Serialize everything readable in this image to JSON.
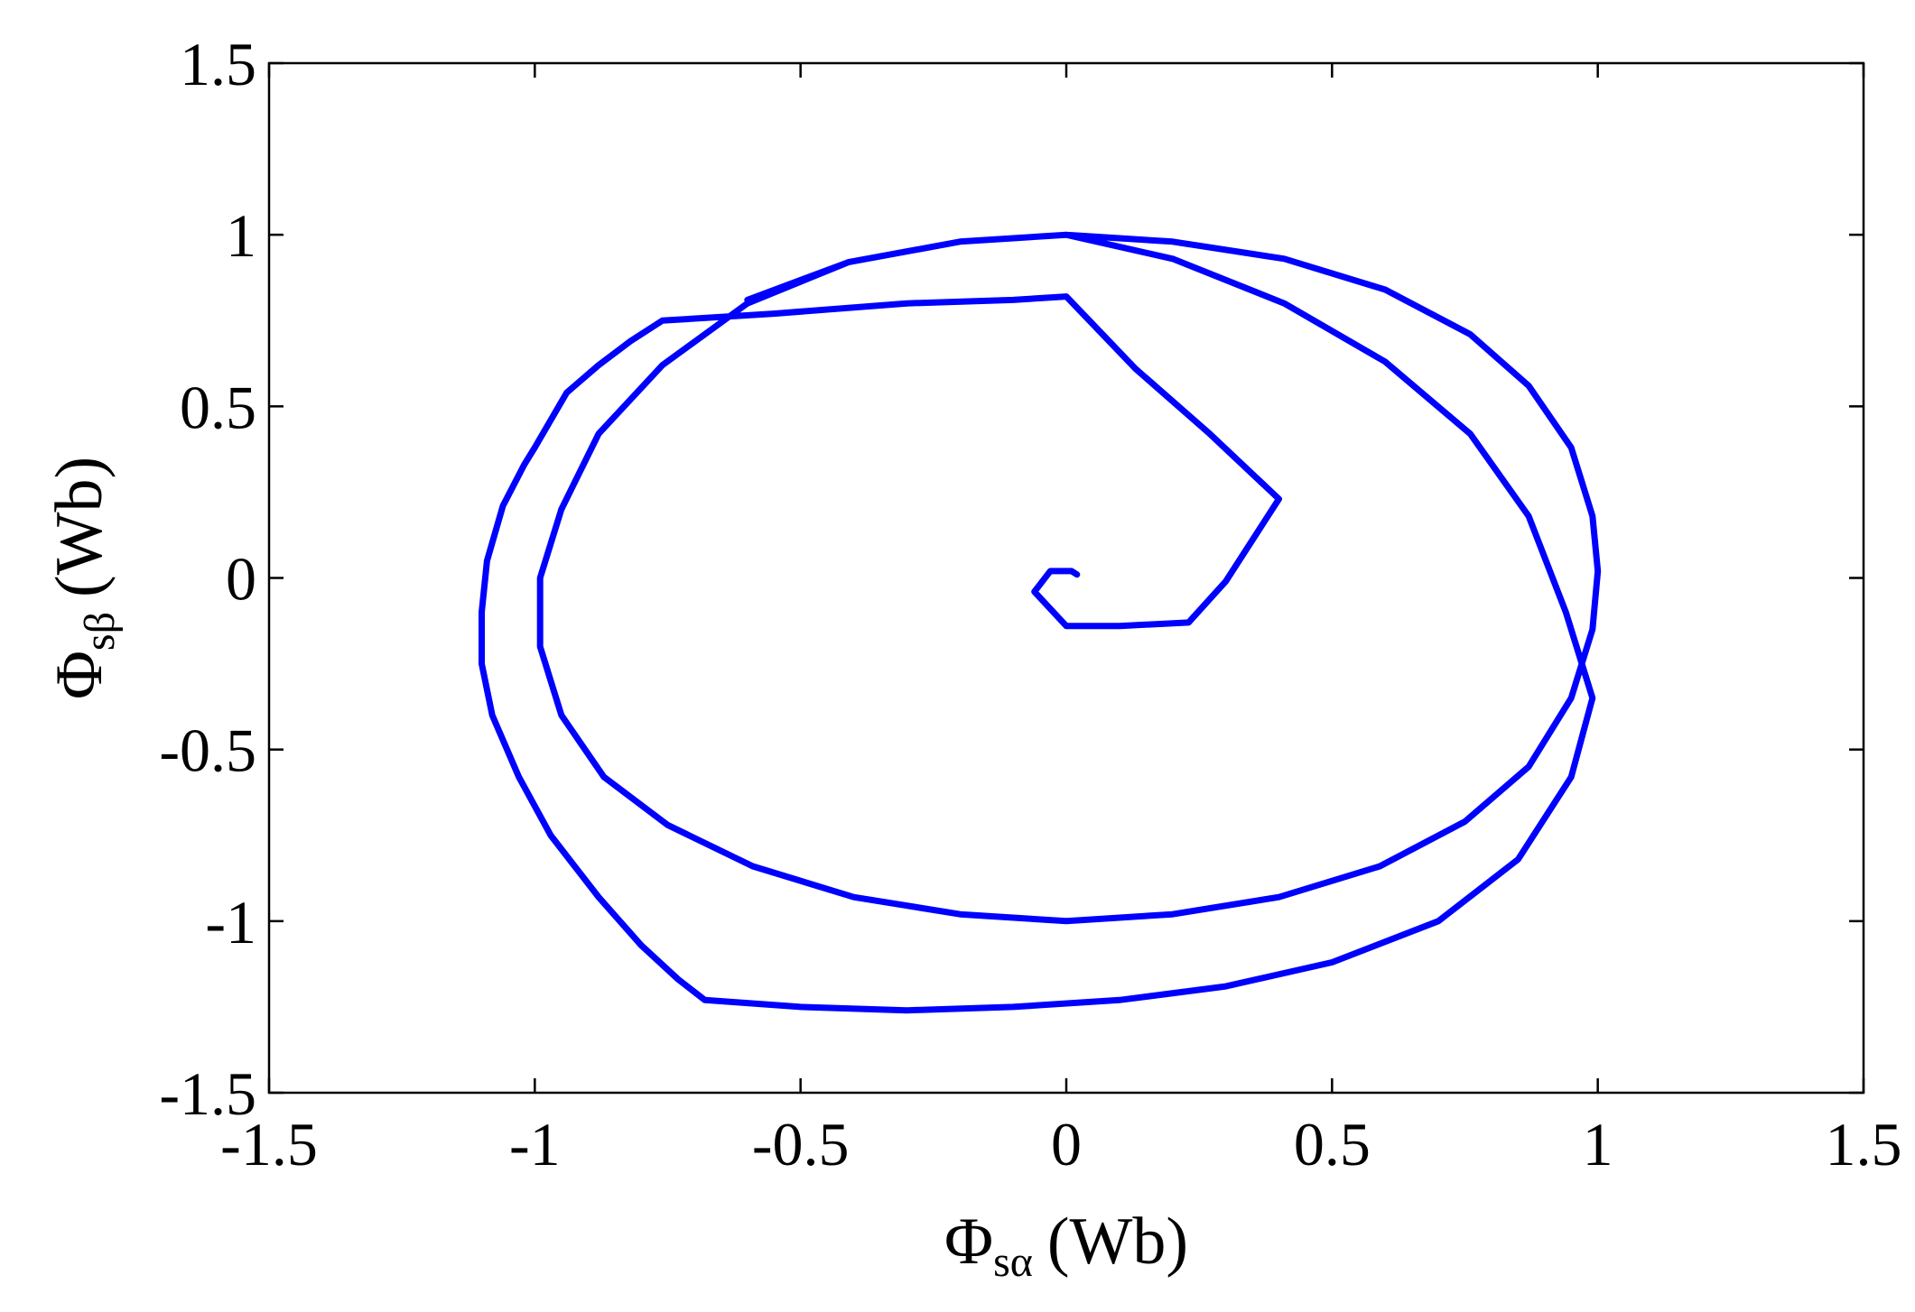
{
  "chart_data": {
    "type": "line",
    "title": "",
    "xlabel": {
      "symbol": "Φ",
      "sub": "sα",
      "unit": "(Wb)"
    },
    "ylabel": {
      "symbol": "Φ",
      "sub": "sβ",
      "unit": "(Wb)"
    },
    "xlim": [
      -1.5,
      1.5
    ],
    "ylim": [
      -1.5,
      1.5
    ],
    "xticks": [
      -1.5,
      -1,
      -0.5,
      0,
      0.5,
      1,
      1.5
    ],
    "yticks": [
      -1.5,
      -1,
      -0.5,
      0,
      0.5,
      1,
      1.5
    ],
    "xtick_labels": [
      "-1.5",
      "-1",
      "-0.5",
      "0",
      "0.5",
      "1",
      "1.5"
    ],
    "ytick_labels": [
      "-1.5",
      "-1",
      "-0.5",
      "0",
      "0.5",
      "1",
      "1.5"
    ],
    "grid": false,
    "legend": "none",
    "line_color": "#0000ff",
    "series": [
      {
        "x": [
          0.02,
          0.01,
          -0.03,
          -0.06,
          0.0,
          0.1,
          0.23,
          0.3,
          0.4,
          0.27,
          0.13,
          0.0,
          -0.1,
          -0.3,
          -0.55,
          -0.76,
          -0.82,
          -0.88,
          -0.94,
          -1.0,
          -1.02,
          -1.06,
          -1.09,
          -1.1,
          -1.1,
          -1.08,
          -1.03,
          -0.97,
          -0.88,
          -0.8,
          -0.73,
          -0.68,
          -0.5,
          -0.3,
          -0.1,
          0.1,
          0.3,
          0.5,
          0.7,
          0.85,
          0.95,
          0.99,
          0.98,
          0.94,
          0.87,
          0.76,
          0.6,
          0.41,
          0.2,
          0.0,
          -0.2,
          -0.41,
          -0.6,
          -0.76,
          -0.88,
          -0.95,
          -0.99,
          -0.99,
          -0.95,
          -0.87,
          -0.75,
          -0.59,
          -0.4,
          -0.2,
          0.0,
          0.2,
          0.4,
          0.59,
          0.75,
          0.87,
          0.95,
          0.99,
          1.0,
          0.99,
          0.95,
          0.87,
          0.76,
          0.6,
          0.41,
          0.2,
          0.0,
          -0.2,
          -0.41,
          -0.6
        ],
        "y": [
          0.01,
          0.02,
          0.02,
          -0.04,
          -0.14,
          -0.14,
          -0.13,
          -0.01,
          0.23,
          0.42,
          0.61,
          0.82,
          0.81,
          0.8,
          0.77,
          0.75,
          0.69,
          0.62,
          0.54,
          0.38,
          0.33,
          0.21,
          0.05,
          -0.1,
          -0.25,
          -0.4,
          -0.58,
          -0.75,
          -0.93,
          -1.07,
          -1.17,
          -1.23,
          -1.25,
          -1.26,
          -1.25,
          -1.23,
          -1.19,
          -1.12,
          -1.0,
          -0.82,
          -0.58,
          -0.35,
          -0.3,
          -0.1,
          0.18,
          0.42,
          0.63,
          0.8,
          0.93,
          1.0,
          0.98,
          0.92,
          0.8,
          0.62,
          0.42,
          0.2,
          0.0,
          -0.2,
          -0.4,
          -0.58,
          -0.72,
          -0.84,
          -0.93,
          -0.98,
          -1.0,
          -0.98,
          -0.93,
          -0.84,
          -0.71,
          -0.55,
          -0.35,
          -0.15,
          0.02,
          0.18,
          0.38,
          0.56,
          0.71,
          0.84,
          0.93,
          0.98,
          1.0,
          0.98,
          0.92,
          0.81
        ]
      }
    ]
  }
}
